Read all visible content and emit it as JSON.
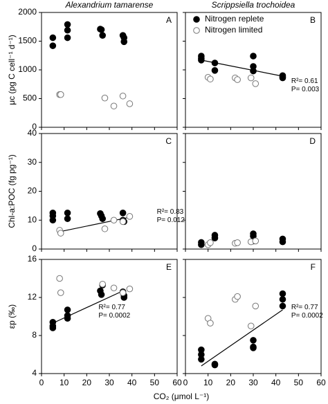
{
  "xlabel": "CO₂ (μmol L⁻¹)",
  "chart_data": [
    {
      "type": "scatter",
      "label": "A",
      "title": "Alexandrium tamarense",
      "ylabel": "μc (pg C cell⁻¹ d⁻¹)",
      "xlim": [
        0,
        60
      ],
      "xticks": [
        0,
        10,
        20,
        30,
        40,
        50,
        60
      ],
      "xtick_labels": false,
      "ylim": [
        0,
        2000
      ],
      "yticks": [
        0,
        500,
        1000,
        1500,
        2000
      ],
      "ytick_labels": true,
      "series": [
        {
          "color": "#000000",
          "edgecolor": "#000000",
          "x": [
            5,
            5,
            11.5,
            11.5,
            11.5,
            26,
            26.5,
            27,
            36,
            36.5,
            36.5
          ],
          "values": [
            1560,
            1420,
            1790,
            1690,
            1560,
            1710,
            1700,
            1600,
            1600,
            1560,
            1490
          ]
        },
        {
          "color": "#ffffff",
          "edgecolor": "#777777",
          "x": [
            8,
            8.5,
            28,
            32,
            36,
            39
          ],
          "values": [
            570,
            570,
            510,
            370,
            545,
            410
          ]
        }
      ]
    },
    {
      "type": "scatter",
      "label": "B",
      "title": "Scrippsiella trochoidea",
      "xlim": [
        0,
        60
      ],
      "xticks": [
        0,
        10,
        20,
        30,
        40,
        50,
        60
      ],
      "xtick_labels": false,
      "ylim": [
        0,
        2000
      ],
      "yticks": [
        0,
        500,
        1000,
        1500,
        2000
      ],
      "ytick_labels": false,
      "legend": "upper left",
      "series": [
        {
          "name": "Nitrogen replete",
          "color": "#000000",
          "edgecolor": "#000000",
          "x": [
            7,
            7,
            7,
            13,
            13,
            30,
            30,
            30,
            43,
            43,
            43
          ],
          "values": [
            1240,
            1200,
            1170,
            1120,
            990,
            1240,
            1060,
            980,
            900,
            860,
            880
          ]
        },
        {
          "name": "Nitrogen limited",
          "color": "#ffffff",
          "edgecolor": "#777777",
          "x": [
            10,
            11,
            22,
            23,
            29,
            31
          ],
          "values": [
            870,
            840,
            860,
            830,
            860,
            760
          ]
        }
      ],
      "fit": {
        "color": "#000000",
        "x": [
          7,
          43
        ],
        "values": [
          1170,
          890
        ]
      },
      "annotations": [
        "R²= 0.61",
        "P= 0.003"
      ]
    },
    {
      "type": "scatter",
      "label": "C",
      "ylabel": "Chl-a:POC (fg pg⁻¹)",
      "xlim": [
        0,
        60
      ],
      "xticks": [
        0,
        10,
        20,
        30,
        40,
        50,
        60
      ],
      "xtick_labels": false,
      "ylim": [
        0,
        40
      ],
      "yticks": [
        0,
        10,
        20,
        30,
        40
      ],
      "ytick_labels": true,
      "series": [
        {
          "color": "#000000",
          "edgecolor": "#000000",
          "x": [
            5,
            5,
            5,
            11.5,
            11.5,
            26,
            26.5,
            27,
            36,
            36,
            36.5
          ],
          "values": [
            12.5,
            11.5,
            10,
            12.5,
            10.5,
            12.3,
            11.5,
            10.5,
            12.5,
            10,
            9.5
          ]
        },
        {
          "color": "#ffffff",
          "edgecolor": "#777777",
          "x": [
            8,
            8.5,
            28,
            32,
            36,
            39
          ],
          "values": [
            6.5,
            5.5,
            7,
            10,
            9.5,
            11.3
          ]
        }
      ],
      "fit": {
        "color": "#000000",
        "x": [
          8,
          39
        ],
        "values": [
          6,
          11
        ]
      },
      "annotations": [
        "R²= 0.83",
        "P= 0.012"
      ]
    },
    {
      "type": "scatter",
      "label": "D",
      "xlim": [
        0,
        60
      ],
      "xticks": [
        0,
        10,
        20,
        30,
        40,
        50,
        60
      ],
      "xtick_labels": false,
      "ylim": [
        0,
        40
      ],
      "yticks": [
        0,
        10,
        20,
        30,
        40
      ],
      "ytick_labels": false,
      "series": [
        {
          "color": "#000000",
          "edgecolor": "#000000",
          "x": [
            7,
            7,
            13,
            13,
            30,
            30,
            30,
            43,
            43
          ],
          "values": [
            2.3,
            1.5,
            4.8,
            3.8,
            5.3,
            4.5,
            2.8,
            3.5,
            2.5
          ]
        },
        {
          "color": "#ffffff",
          "edgecolor": "#777777",
          "x": [
            10,
            11,
            22,
            23,
            29,
            31
          ],
          "values": [
            1.5,
            2.2,
            2,
            2.2,
            2.5,
            2.8
          ]
        }
      ]
    },
    {
      "type": "scatter",
      "label": "E",
      "ylabel": "εp (‰)",
      "xlim": [
        0,
        60
      ],
      "xticks": [
        0,
        10,
        20,
        30,
        40,
        50,
        60
      ],
      "xtick_labels": true,
      "ylim": [
        4,
        16
      ],
      "yticks": [
        4,
        8,
        12,
        16
      ],
      "ytick_labels": true,
      "series": [
        {
          "color": "#000000",
          "edgecolor": "#000000",
          "x": [
            5,
            5,
            5,
            11.5,
            11.5,
            11.5,
            26,
            26.5,
            27,
            36,
            36.5,
            36.5
          ],
          "values": [
            9.4,
            9,
            8.8,
            10.7,
            10.1,
            9.8,
            12.7,
            12.3,
            13.3,
            12.6,
            12.2,
            12
          ]
        },
        {
          "color": "#ffffff",
          "edgecolor": "#777777",
          "x": [
            8,
            8.5,
            27,
            32,
            36,
            39
          ],
          "values": [
            14,
            12.5,
            13.4,
            13,
            12.5,
            12.9
          ]
        }
      ],
      "fit": {
        "color": "#000000",
        "x": [
          5,
          37
        ],
        "values": [
          9.3,
          12.8
        ]
      },
      "annotations": [
        "R²= 0.77",
        "P= 0.0002"
      ]
    },
    {
      "type": "scatter",
      "label": "F",
      "xlim": [
        0,
        60
      ],
      "xticks": [
        0,
        10,
        20,
        30,
        40,
        50,
        60
      ],
      "xtick_labels": true,
      "ylim": [
        4,
        16
      ],
      "yticks": [
        4,
        8,
        12,
        16
      ],
      "ytick_labels": false,
      "series": [
        {
          "color": "#000000",
          "edgecolor": "#000000",
          "x": [
            7,
            7,
            7,
            13,
            13,
            30,
            30,
            30,
            43,
            43,
            43
          ],
          "values": [
            6.5,
            6,
            5.5,
            5,
            4.9,
            7.5,
            6.8,
            6.7,
            12.4,
            11.8,
            11.1
          ]
        },
        {
          "color": "#ffffff",
          "edgecolor": "#777777",
          "x": [
            10,
            11,
            22,
            23,
            29,
            31
          ],
          "values": [
            9.8,
            9.3,
            11.8,
            12.1,
            9,
            11.1
          ]
        }
      ],
      "fit": {
        "color": "#000000",
        "x": [
          7,
          43
        ],
        "values": [
          4.8,
          10.7
        ]
      },
      "annotations": [
        "R²= 0.77",
        "P= 0.0002"
      ]
    }
  ]
}
